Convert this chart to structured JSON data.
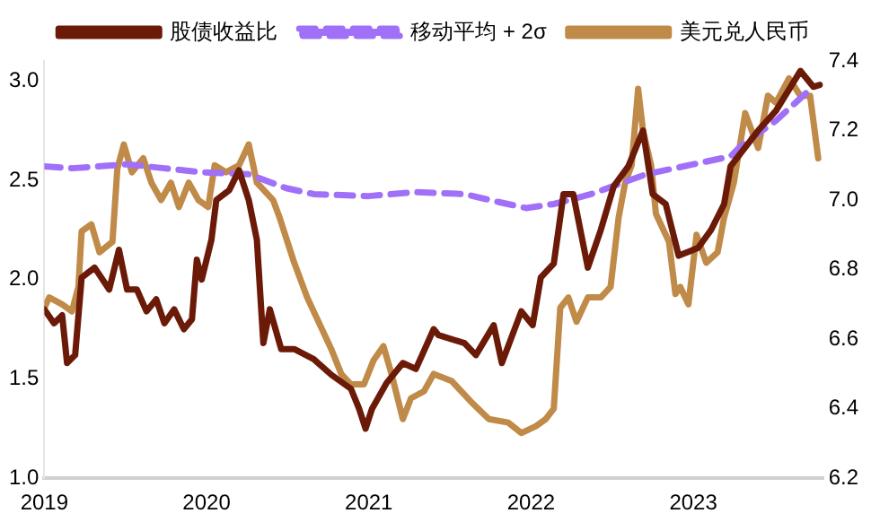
{
  "chart_data": {
    "type": "line",
    "legend": "top",
    "grid": false,
    "marker": "none",
    "xlim": [
      2019,
      2023.8
    ],
    "xticks": [
      2019,
      2020,
      2021,
      2022,
      2023
    ],
    "ylim": [
      1,
      3.1
    ],
    "yticks": [
      {
        "value": 1,
        "label": "1.0"
      },
      {
        "value": 1.5,
        "label": "1.5"
      },
      {
        "value": 2,
        "label": "2.0"
      },
      {
        "value": 2.5,
        "label": "2.5"
      },
      {
        "value": 3,
        "label": "3.0"
      }
    ],
    "y2lim": [
      6.2,
      7.4
    ],
    "y2ticks": [
      6.2,
      6.4,
      6.6,
      6.8,
      {
        "value": 7,
        "label": "7.0"
      },
      7.2,
      7.4
    ],
    "series": [
      {
        "name": "股债收益比",
        "color": "#6b1a08",
        "line_style": "solid",
        "x": [
          2019,
          2019.06,
          2019.11,
          2019.14,
          2019.19,
          2019.23,
          2019.31,
          2019.4,
          2019.46,
          2019.51,
          2019.57,
          2019.63,
          2019.69,
          2019.74,
          2019.8,
          2019.86,
          2019.91,
          2019.94,
          2019.97,
          2020.03,
          2020.06,
          2020.14,
          2020.2,
          2020.26,
          2020.31,
          2020.35,
          2020.39,
          2020.46,
          2020.54,
          2020.66,
          2020.77,
          2020.89,
          2020.94,
          2020.98,
          2021.02,
          2021.11,
          2021.21,
          2021.29,
          2021.4,
          2021.43,
          2021.59,
          2021.66,
          2021.77,
          2021.82,
          2021.94,
          2022.01,
          2022.06,
          2022.14,
          2022.2,
          2022.26,
          2022.35,
          2022.43,
          2022.51,
          2022.6,
          2022.69,
          2022.75,
          2022.83,
          2022.91,
          2022.97,
          2023.03,
          2023.11,
          2023.19,
          2023.23,
          2023.4,
          2023.51,
          2023.66,
          2023.74,
          2023.78
        ],
        "values": [
          1.85,
          1.78,
          1.82,
          1.58,
          1.62,
          2.01,
          2.06,
          1.95,
          2.15,
          1.95,
          1.95,
          1.84,
          1.9,
          1.78,
          1.85,
          1.75,
          1.8,
          2.1,
          2.0,
          2.2,
          2.4,
          2.45,
          2.55,
          2.4,
          2.2,
          1.68,
          1.85,
          1.65,
          1.65,
          1.6,
          1.52,
          1.45,
          1.35,
          1.25,
          1.35,
          1.48,
          1.58,
          1.55,
          1.75,
          1.72,
          1.68,
          1.62,
          1.77,
          1.58,
          1.84,
          1.77,
          2.01,
          2.08,
          2.43,
          2.43,
          2.06,
          2.25,
          2.47,
          2.57,
          2.75,
          2.43,
          2.38,
          2.12,
          2.14,
          2.16,
          2.25,
          2.38,
          2.57,
          2.75,
          2.85,
          3.05,
          2.97,
          2.98
        ]
      },
      {
        "name": "移动平均 + 2σ",
        "color": "#a070f8",
        "line_style": "dashed",
        "x": [
          2019,
          2019.17,
          2019.51,
          2019.74,
          2019.97,
          2020.26,
          2020.49,
          2020.66,
          2021.0,
          2021.29,
          2021.59,
          2021.8,
          2021.97,
          2022.14,
          2022.37,
          2022.71,
          2023.0,
          2023.23,
          2023.29,
          2023.51,
          2023.71
        ],
        "values": [
          2.57,
          2.56,
          2.58,
          2.56,
          2.54,
          2.53,
          2.46,
          2.43,
          2.42,
          2.44,
          2.43,
          2.39,
          2.36,
          2.38,
          2.43,
          2.53,
          2.58,
          2.62,
          2.67,
          2.8,
          2.95
        ]
      },
      {
        "name": "美元兑人民币",
        "color": "#c08a48",
        "line_style": "solid",
        "axis": "y2",
        "x": [
          2019,
          2019.03,
          2019.11,
          2019.17,
          2019.21,
          2019.23,
          2019.29,
          2019.34,
          2019.42,
          2019.45,
          2019.49,
          2019.54,
          2019.61,
          2019.66,
          2019.72,
          2019.78,
          2019.83,
          2019.89,
          2019.95,
          2020.01,
          2020.05,
          2020.12,
          2020.2,
          2020.26,
          2020.31,
          2020.41,
          2020.45,
          2020.54,
          2020.62,
          2020.68,
          2020.77,
          2020.83,
          2020.89,
          2020.97,
          2021.03,
          2021.09,
          2021.14,
          2021.21,
          2021.26,
          2021.34,
          2021.4,
          2021.51,
          2021.63,
          2021.74,
          2021.86,
          2021.94,
          2022.03,
          2022.09,
          2022.14,
          2022.18,
          2022.23,
          2022.28,
          2022.35,
          2022.43,
          2022.49,
          2022.54,
          2022.58,
          2022.62,
          2022.66,
          2022.69,
          2022.74,
          2022.77,
          2022.85,
          2022.89,
          2022.92,
          2022.97,
          2023.02,
          2023.08,
          2023.15,
          2023.19,
          2023.25,
          2023.32,
          2023.4,
          2023.46,
          2023.51,
          2023.59,
          2023.66,
          2023.72,
          2023.77
        ],
        "values": [
          6.69,
          6.72,
          6.7,
          6.68,
          6.75,
          6.91,
          6.93,
          6.85,
          6.88,
          7.09,
          7.16,
          7.08,
          7.12,
          7.05,
          7.0,
          7.05,
          6.98,
          7.05,
          7.0,
          6.98,
          7.1,
          7.08,
          7.1,
          7.16,
          7.05,
          7.0,
          6.95,
          6.82,
          6.72,
          6.66,
          6.57,
          6.5,
          6.47,
          6.47,
          6.54,
          6.58,
          6.5,
          6.37,
          6.43,
          6.45,
          6.5,
          6.48,
          6.42,
          6.37,
          6.36,
          6.33,
          6.35,
          6.37,
          6.4,
          6.69,
          6.72,
          6.65,
          6.72,
          6.72,
          6.75,
          6.95,
          7.05,
          7.1,
          7.32,
          7.2,
          7.1,
          6.96,
          6.88,
          6.73,
          6.75,
          6.7,
          6.9,
          6.82,
          6.85,
          6.95,
          7.05,
          7.25,
          7.15,
          7.3,
          7.28,
          7.35,
          7.3,
          7.3,
          7.12
        ]
      }
    ]
  }
}
